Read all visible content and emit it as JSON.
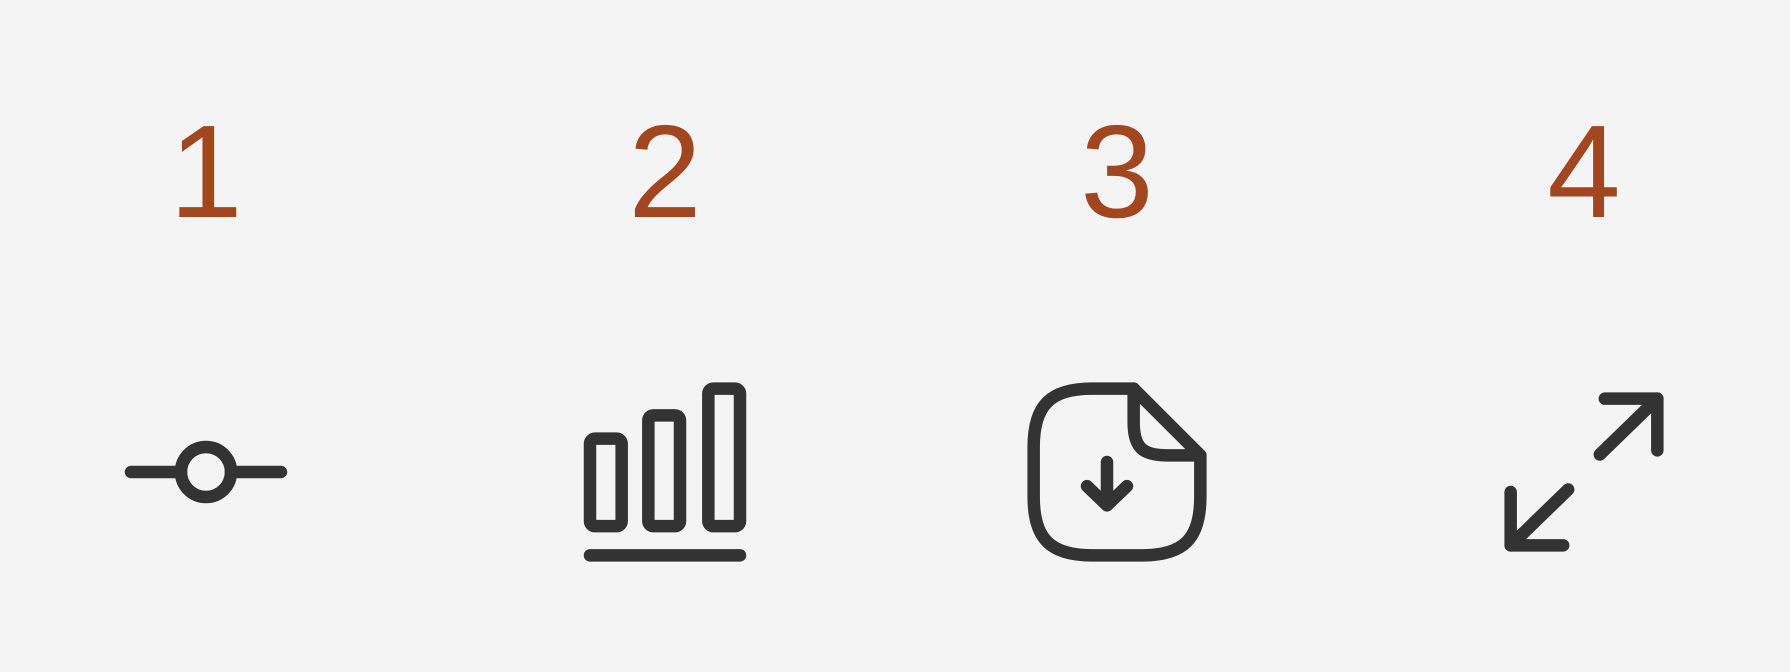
{
  "items": [
    {
      "number": "1",
      "icon": "commit-icon"
    },
    {
      "number": "2",
      "icon": "bar-chart-icon"
    },
    {
      "number": "3",
      "icon": "document-download-icon"
    },
    {
      "number": "4",
      "icon": "expand-arrows-icon"
    }
  ],
  "colors": {
    "background": "#f4f4f4",
    "number": "#a2461f",
    "icon": "#333333"
  }
}
